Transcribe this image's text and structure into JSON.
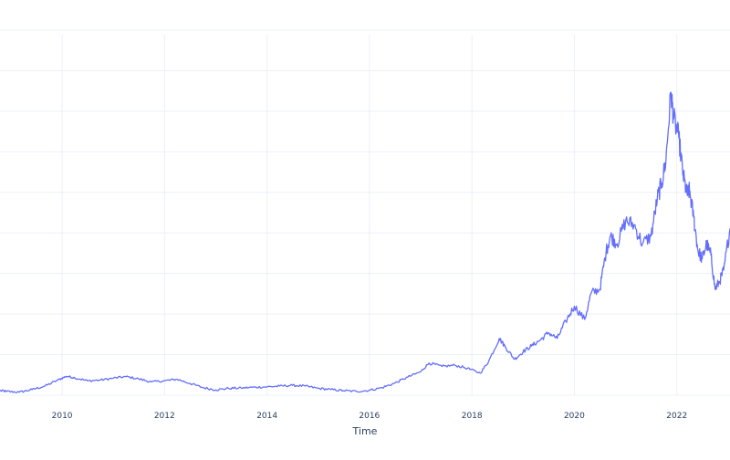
{
  "chart_data": {
    "type": "line",
    "title": "",
    "xlabel": "Time",
    "ylabel": "",
    "x_ticks": [
      "2010",
      "2012",
      "2014",
      "2016",
      "2018",
      "2020",
      "2022"
    ],
    "xlim": [
      "2008-10-15",
      "2023-01-15"
    ],
    "ylim": [
      0,
      100
    ],
    "grid": true,
    "legend": "none",
    "line_color": "#636efa",
    "series": [
      {
        "values": [
          [
            "2008-10-15",
            1.2
          ],
          [
            "2008-12-01",
            1.0
          ],
          [
            "2009-03-01",
            0.8
          ],
          [
            "2009-06-01",
            1.5
          ],
          [
            "2009-09-01",
            2.4
          ],
          [
            "2009-12-01",
            4.0
          ],
          [
            "2010-02-01",
            5.0
          ],
          [
            "2010-04-01",
            4.6
          ],
          [
            "2010-07-01",
            3.8
          ],
          [
            "2010-10-01",
            4.0
          ],
          [
            "2011-01-01",
            4.5
          ],
          [
            "2011-04-01",
            4.9
          ],
          [
            "2011-07-01",
            4.3
          ],
          [
            "2011-10-01",
            3.5
          ],
          [
            "2012-01-01",
            3.8
          ],
          [
            "2012-04-01",
            4.2
          ],
          [
            "2012-07-01",
            3.1
          ],
          [
            "2012-10-01",
            2.0
          ],
          [
            "2013-01-01",
            1.4
          ],
          [
            "2013-04-01",
            1.8
          ],
          [
            "2013-07-01",
            1.9
          ],
          [
            "2013-10-01",
            2.1
          ],
          [
            "2014-01-01",
            2.2
          ],
          [
            "2014-04-01",
            2.4
          ],
          [
            "2014-07-01",
            2.6
          ],
          [
            "2014-10-01",
            2.4
          ],
          [
            "2015-01-01",
            1.8
          ],
          [
            "2015-04-01",
            1.5
          ],
          [
            "2015-07-01",
            1.2
          ],
          [
            "2015-10-01",
            1.0
          ],
          [
            "2016-01-01",
            1.3
          ],
          [
            "2016-04-01",
            2.0
          ],
          [
            "2016-07-01",
            3.2
          ],
          [
            "2016-10-01",
            4.8
          ],
          [
            "2017-01-01",
            6.2
          ],
          [
            "2017-03-01",
            8.5
          ],
          [
            "2017-06-01",
            7.6
          ],
          [
            "2017-09-01",
            7.9
          ],
          [
            "2017-12-01",
            7.1
          ],
          [
            "2018-03-01",
            5.8
          ],
          [
            "2018-05-01",
            9.0
          ],
          [
            "2018-07-15",
            15.0
          ],
          [
            "2018-09-01",
            12.5
          ],
          [
            "2018-11-01",
            9.5
          ],
          [
            "2019-01-01",
            11.5
          ],
          [
            "2019-03-01",
            13.0
          ],
          [
            "2019-05-01",
            14.5
          ],
          [
            "2019-07-01",
            16.5
          ],
          [
            "2019-09-01",
            15.0
          ],
          [
            "2019-11-01",
            19.5
          ],
          [
            "2020-01-01",
            23.5
          ],
          [
            "2020-03-15",
            20.0
          ],
          [
            "2020-05-01",
            27.0
          ],
          [
            "2020-07-01",
            28.0
          ],
          [
            "2020-08-15",
            38.0
          ],
          [
            "2020-09-15",
            42.0
          ],
          [
            "2020-11-01",
            40.0
          ],
          [
            "2021-01-01",
            46.0
          ],
          [
            "2021-03-01",
            45.0
          ],
          [
            "2021-05-01",
            40.0
          ],
          [
            "2021-07-01",
            42.0
          ],
          [
            "2021-08-15",
            52.0
          ],
          [
            "2021-09-15",
            56.0
          ],
          [
            "2021-10-15",
            62.0
          ],
          [
            "2021-11-20",
            80.0
          ],
          [
            "2021-12-10",
            73.0
          ],
          [
            "2022-01-15",
            68.0
          ],
          [
            "2022-02-15",
            58.0
          ],
          [
            "2022-03-15",
            53.0
          ],
          [
            "2022-04-01",
            54.0
          ],
          [
            "2022-05-01",
            47.0
          ],
          [
            "2022-06-01",
            38.0
          ],
          [
            "2022-07-01",
            36.0
          ],
          [
            "2022-08-01",
            40.0
          ],
          [
            "2022-09-01",
            37.0
          ],
          [
            "2022-10-01",
            28.0
          ],
          [
            "2022-11-01",
            30.0
          ],
          [
            "2022-12-01",
            33.0
          ],
          [
            "2023-01-15",
            44.0
          ]
        ]
      }
    ]
  }
}
